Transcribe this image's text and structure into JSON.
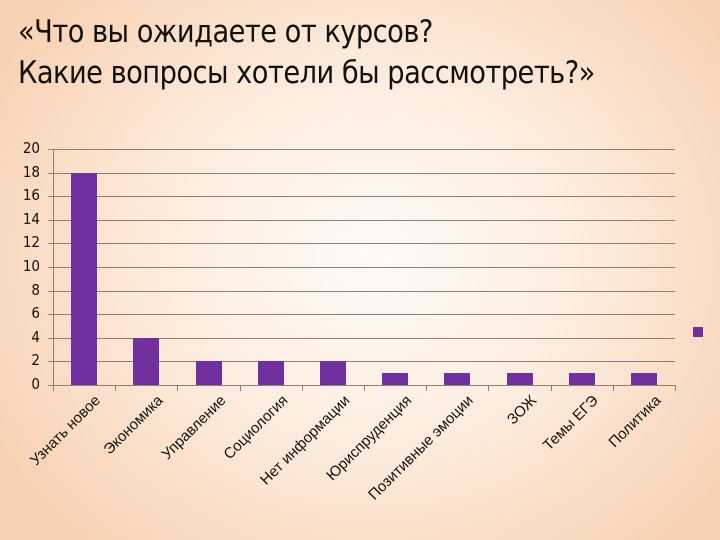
{
  "title": {
    "line1": "«Что вы ожидаете от курсов?",
    "line2": "Какие вопросы хотели бы рассмотреть?»"
  },
  "colors": {
    "bar": "#7030a0",
    "gridline": "#8a817b",
    "background_center": "#fffaf5",
    "background_edge": "#f8d2b4"
  },
  "chart_data": {
    "type": "bar",
    "title": "«Что вы ожидаете от курсов? Какие вопросы хотели бы рассмотреть?»",
    "xlabel": "",
    "ylabel": "",
    "categories": [
      "Узнать новое",
      "Экономика",
      "Управление",
      "Социология",
      "Нет информации",
      "Юриспруденция",
      "Позитивные эмоции",
      "ЗОЖ",
      "Темы ЕГЭ",
      "Политика"
    ],
    "values": [
      18,
      4,
      2,
      2,
      2,
      1,
      1,
      1,
      1,
      1
    ],
    "ylim": [
      0,
      20
    ],
    "yticks": [
      "0",
      "2",
      "4",
      "6",
      "8",
      "10",
      "12",
      "14",
      "16",
      "18",
      "20"
    ],
    "grid": true,
    "legend": {
      "position": "right",
      "entries": [
        ""
      ]
    }
  }
}
